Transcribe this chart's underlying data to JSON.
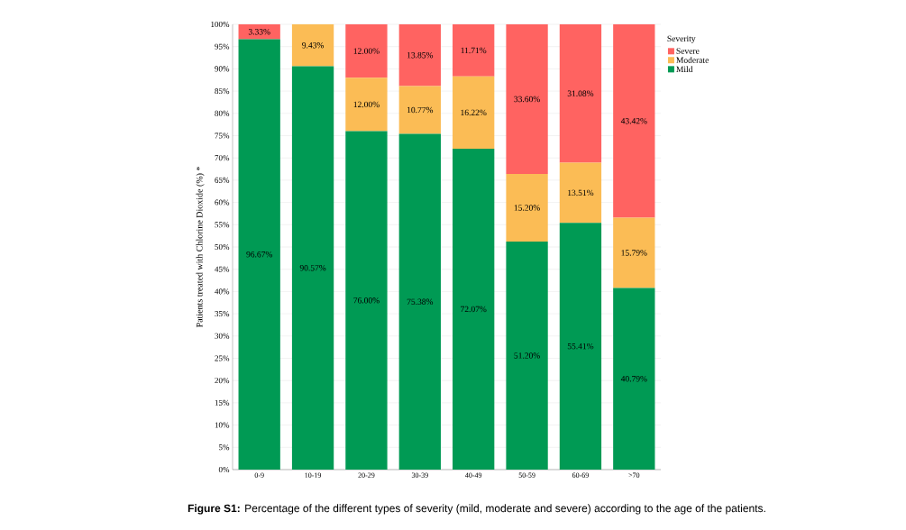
{
  "chart_data": {
    "type": "bar",
    "stacked": true,
    "ylabel": "Patients treated with Chlorine Dioxide (%) *",
    "legend_title": "Severity",
    "legend": "top right",
    "grid": "y",
    "categories": [
      "0-9",
      "10-19",
      "20-29",
      "30-39",
      "40-49",
      "50-59",
      "60-69",
      ">70"
    ],
    "ylim": [
      0,
      100
    ],
    "yticks": [
      {
        "value": 0,
        "label": "0%"
      },
      {
        "value": 5,
        "label": "5%"
      },
      {
        "value": 10,
        "label": "10%"
      },
      {
        "value": 15,
        "label": "15%"
      },
      {
        "value": 20,
        "label": "20%"
      },
      {
        "value": 25,
        "label": "25%"
      },
      {
        "value": 30,
        "label": "30%"
      },
      {
        "value": 35,
        "label": "35%"
      },
      {
        "value": 40,
        "label": "40%"
      },
      {
        "value": 45,
        "label": "45%"
      },
      {
        "value": 50,
        "label": "50%"
      },
      {
        "value": 55,
        "label": "55%"
      },
      {
        "value": 60,
        "label": "60%"
      },
      {
        "value": 65,
        "label": "65%"
      },
      {
        "value": 70,
        "label": "70%"
      },
      {
        "value": 75,
        "label": "75%"
      },
      {
        "value": 80,
        "label": "80%"
      },
      {
        "value": 85,
        "label": "85%"
      },
      {
        "value": 90,
        "label": "90%"
      },
      {
        "value": 95,
        "label": "95%"
      },
      {
        "value": 100,
        "label": "100%"
      }
    ],
    "series": [
      {
        "name": "Mild",
        "color": "#009a54",
        "values": [
          96.67,
          90.57,
          76.0,
          75.38,
          72.07,
          51.2,
          55.41,
          40.79
        ],
        "value_labels": [
          "96.67%",
          "90.57%",
          "76.00%",
          "75.38%",
          "72.07%",
          "51.20%",
          "55.41%",
          "40.79%"
        ]
      },
      {
        "name": "Moderate",
        "color": "#fbbc55",
        "values": [
          0,
          9.43,
          12.0,
          10.77,
          16.22,
          15.2,
          13.51,
          15.79
        ],
        "value_labels": [
          null,
          "9.43%",
          "12.00%",
          "10.77%",
          "16.22%",
          "15.20%",
          "13.51%",
          "15.79%"
        ]
      },
      {
        "name": "Severe",
        "color": "#ff6361",
        "values": [
          3.33,
          0,
          12.0,
          13.85,
          11.71,
          33.6,
          31.08,
          43.42
        ],
        "value_labels": [
          "3.33%",
          null,
          "12.00%",
          "13.85%",
          "11.71%",
          "33.60%",
          "31.08%",
          "43.42%"
        ]
      }
    ],
    "annotations": [
      "**Figure S1:** Percentage of the different types of severity (mild, moderate and severe) according to the age of the patients."
    ]
  }
}
